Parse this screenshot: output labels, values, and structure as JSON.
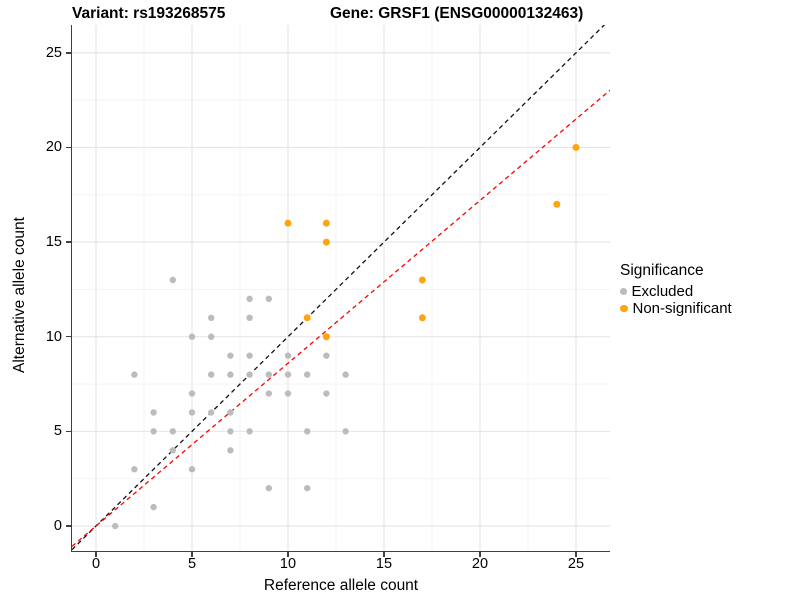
{
  "titles": {
    "left": "Variant: rs193268575",
    "right": "Gene: GRSF1 (ENSG00000132463)"
  },
  "chart_data": {
    "type": "scatter",
    "xlabel": "Reference allele count",
    "ylabel": "Alternative allele count",
    "xlim": [
      -1.25,
      26.77
    ],
    "ylim": [
      -1.32,
      26.47
    ],
    "xticks": [
      0,
      5,
      10,
      15,
      20,
      25
    ],
    "yticks": [
      0,
      5,
      10,
      15,
      20,
      25
    ],
    "minor_xticks": [
      2.5,
      7.5,
      12.5,
      17.5,
      22.5
    ],
    "minor_yticks": [
      2.5,
      7.5,
      12.5,
      17.5,
      22.5
    ],
    "grid": "on",
    "series": [
      {
        "name": "Excluded",
        "color": "#BCBCBC",
        "marker_radius": 3.2,
        "points": [
          [
            1,
            0
          ],
          [
            3,
            1
          ],
          [
            9,
            2
          ],
          [
            11,
            2
          ],
          [
            2,
            3
          ],
          [
            5,
            3
          ],
          [
            4,
            4
          ],
          [
            7,
            4
          ],
          [
            3,
            5
          ],
          [
            4,
            5
          ],
          [
            7,
            5
          ],
          [
            8,
            5
          ],
          [
            11,
            5
          ],
          [
            13,
            5
          ],
          [
            3,
            6
          ],
          [
            5,
            6
          ],
          [
            6,
            6
          ],
          [
            7,
            6
          ],
          [
            5,
            7
          ],
          [
            9,
            7
          ],
          [
            10,
            7
          ],
          [
            12,
            7
          ],
          [
            2,
            8
          ],
          [
            6,
            8
          ],
          [
            7,
            8
          ],
          [
            8,
            8
          ],
          [
            9,
            8
          ],
          [
            10,
            8
          ],
          [
            11,
            8
          ],
          [
            13,
            8
          ],
          [
            7,
            9
          ],
          [
            8,
            9
          ],
          [
            10,
            9
          ],
          [
            12,
            9
          ],
          [
            5,
            10
          ],
          [
            6,
            10
          ],
          [
            6,
            11
          ],
          [
            8,
            11
          ],
          [
            8,
            12
          ],
          [
            9,
            12
          ],
          [
            4,
            13
          ]
        ]
      },
      {
        "name": "Non-significant",
        "color": "#FFA40E",
        "marker_radius": 3.5,
        "points": [
          [
            12,
            10
          ],
          [
            11,
            11
          ],
          [
            17,
            11
          ],
          [
            17,
            13
          ],
          [
            12,
            15
          ],
          [
            10,
            16
          ],
          [
            12,
            16
          ],
          [
            24,
            17
          ],
          [
            25,
            20
          ]
        ]
      }
    ],
    "reference_lines": [
      {
        "name": "identity-line",
        "color": "#111111",
        "slope": 1.0,
        "intercept": 0,
        "style": "dashed"
      },
      {
        "name": "ratio-line",
        "color": "#FF0000",
        "slope": 0.86,
        "intercept": 0,
        "style": "dashed"
      }
    ],
    "legend": {
      "title": "Significance",
      "position": "right",
      "items": [
        {
          "label": "Excluded",
          "color": "#BCBCBC",
          "dot_size": 6.5
        },
        {
          "label": "Non-significant",
          "color": "#FFA40E",
          "dot_size": 7.5
        }
      ]
    }
  },
  "colors": {
    "grid_major": "#E4E4E4",
    "grid_minor": "#F2F2F2",
    "axis_line": "#404040"
  }
}
